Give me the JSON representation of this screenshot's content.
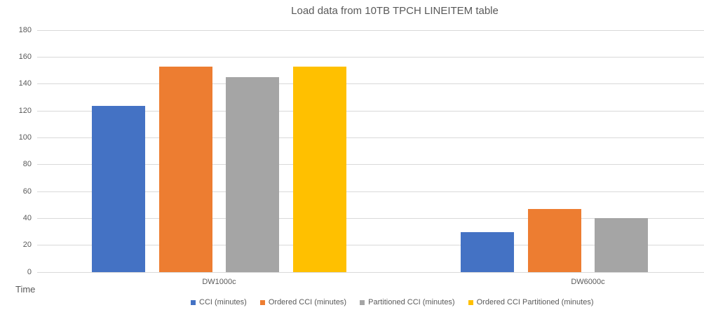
{
  "chart_data": {
    "type": "bar",
    "title": "Load data from 10TB TPCH LINEITEM table",
    "ylabel": "Time",
    "xlabel": "",
    "categories": [
      "DW1000c",
      "DW6000c"
    ],
    "series": [
      {
        "name": "CCI (minutes)",
        "color": "#4472C4",
        "values": [
          124,
          30
        ]
      },
      {
        "name": "Ordered CCI (minutes)",
        "color": "#ED7D31",
        "values": [
          153,
          47
        ]
      },
      {
        "name": "Partitioned CCI (minutes)",
        "color": "#A5A5A5",
        "values": [
          145,
          40
        ]
      },
      {
        "name": "Ordered CCI Partitioned (minutes)",
        "color": "#FFC000",
        "values": [
          153,
          null
        ]
      }
    ],
    "ylim": [
      0,
      180
    ],
    "ytick_step": 20,
    "grid": true,
    "legend_position": "bottom",
    "colors": {
      "grid": "#D9D9D9",
      "axis_text": "#595959",
      "title_text": "#595959"
    }
  }
}
